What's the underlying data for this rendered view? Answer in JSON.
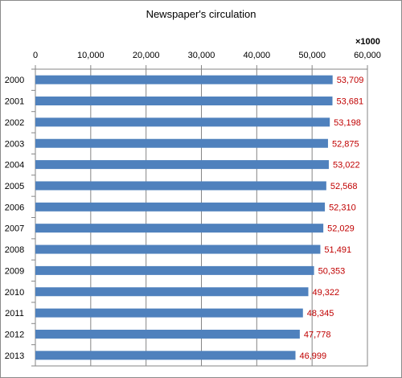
{
  "chart_data": {
    "type": "bar",
    "orientation": "horizontal",
    "title": "Newspaper's circulation",
    "unit_label": "×1000",
    "categories": [
      "2000",
      "2001",
      "2002",
      "2003",
      "2004",
      "2005",
      "2006",
      "2007",
      "2008",
      "2009",
      "2010",
      "2011",
      "2012",
      "2013"
    ],
    "values": [
      53709,
      53681,
      53198,
      52875,
      53022,
      52568,
      52310,
      52029,
      51491,
      50353,
      49322,
      48345,
      47778,
      46999
    ],
    "data_labels": [
      "53,709",
      "53,681",
      "53,198",
      "52,875",
      "53,022",
      "52,568",
      "52,310",
      "52,029",
      "51,491",
      "50,353",
      "49,322",
      "48,345",
      "47,778",
      "46,999"
    ],
    "xlim": [
      0,
      60000
    ],
    "ticks": [
      0,
      10000,
      20000,
      30000,
      40000,
      50000,
      60000
    ],
    "tick_labels": [
      "0",
      "10,000",
      "20,000",
      "30,000",
      "40,000",
      "50,000",
      "60,000"
    ],
    "axis_position": "top",
    "grid": true,
    "legend": "none",
    "bar_color": "#4f81bd",
    "label_color": "#c00000",
    "grid_color": "#868686"
  }
}
